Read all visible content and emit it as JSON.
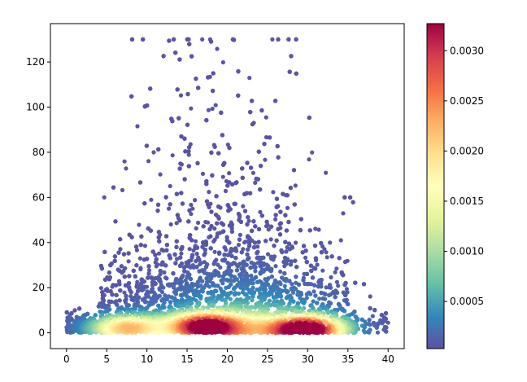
{
  "chart_data": {
    "type": "scatter",
    "title": "",
    "xlabel": "",
    "ylabel": "",
    "xlim": [
      -2,
      42
    ],
    "ylim": [
      -7,
      137
    ],
    "x_ticks": [
      0,
      5,
      10,
      15,
      20,
      25,
      30,
      35,
      40
    ],
    "x_tick_labels": [
      "0",
      "5",
      "10",
      "15",
      "20",
      "25",
      "30",
      "35",
      "40"
    ],
    "y_ticks": [
      0,
      20,
      40,
      60,
      80,
      100,
      120
    ],
    "y_tick_labels": [
      "0",
      "20",
      "40",
      "60",
      "80",
      "100",
      "120"
    ],
    "grid": false,
    "colormap": "Spectral_r",
    "color_by": "point density",
    "colorbar": {
      "range": [
        3e-05,
        0.00327
      ],
      "ticks": [
        0.0005,
        0.001,
        0.0015,
        0.002,
        0.0025,
        0.003
      ],
      "tick_labels": [
        "0.0005",
        "0.0010",
        "0.0015",
        "0.0020",
        "0.0025",
        "0.0030"
      ]
    },
    "density_peaks": [
      {
        "x": 7.5,
        "y": 2,
        "density": 0.0021
      },
      {
        "x": 17,
        "y": 3,
        "density": 0.0026
      },
      {
        "x": 30,
        "y": 1.5,
        "density": 0.0033
      }
    ],
    "point_count": 11000,
    "x_range_of_points": [
      0,
      40
    ],
    "y_range_of_points": [
      0,
      130
    ],
    "colors": {
      "low": "#5e4fa2",
      "high": "#9e0142",
      "marker": "#5b5ea6"
    }
  }
}
